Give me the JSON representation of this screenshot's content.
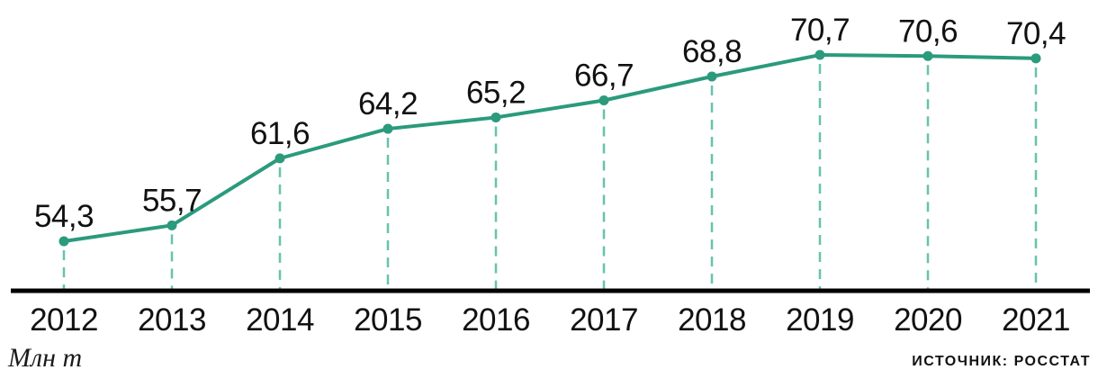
{
  "chart_data": {
    "type": "line",
    "title": "",
    "categories": [
      "2012",
      "2013",
      "2014",
      "2015",
      "2016",
      "2017",
      "2018",
      "2019",
      "2020",
      "2021"
    ],
    "values": [
      54.3,
      55.7,
      61.6,
      64.2,
      65.2,
      66.7,
      68.8,
      70.7,
      70.6,
      70.4
    ],
    "value_labels": [
      "54,3",
      "55,7",
      "61,6",
      "64,2",
      "65,2",
      "66,7",
      "68,8",
      "70,7",
      "70,6",
      "70,4"
    ],
    "xlabel": "",
    "ylabel": "Млн т",
    "source": "ИСТОЧНИК: РОССТАТ",
    "ylim": [
      49.7,
      75
    ],
    "grid": false,
    "legend_position": "none",
    "colors": {
      "line": "#2b9a7d",
      "marker": "#2b9a7d",
      "drop_dash": "#66c3ad",
      "axis": "#000000",
      "text": "#111111"
    }
  }
}
